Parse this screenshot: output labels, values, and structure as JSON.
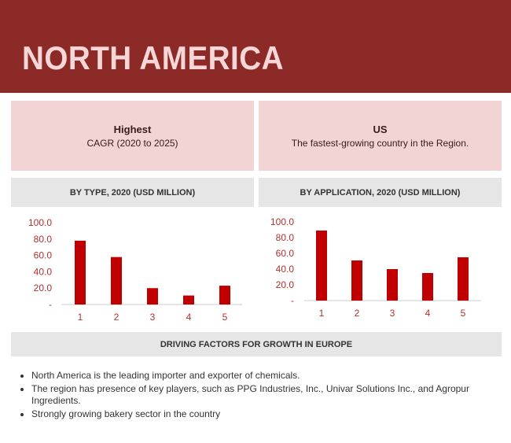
{
  "header": {
    "title": "NORTH AMERICA"
  },
  "cards": [
    {
      "bold": "Highest",
      "text": "CAGR (2020 to 2025)"
    },
    {
      "bold": "US",
      "text": "The fastest-growing country in the Region."
    }
  ],
  "colors": {
    "banner": "#8B2A26",
    "bar": "#C00000",
    "card": "#F2D4D4",
    "header": "#E6E6E6"
  },
  "chart_data": [
    {
      "type": "bar",
      "title": "BY TYPE, 2020 (USD MILLION)",
      "categories": [
        "1",
        "2",
        "3",
        "4",
        "5"
      ],
      "values": [
        78,
        58,
        20,
        11,
        23
      ],
      "ylim": [
        0,
        100
      ],
      "yticks": [
        "-",
        "20.0",
        "40.0",
        "60.0",
        "80.0",
        "100.0"
      ],
      "grid": false
    },
    {
      "type": "bar",
      "title": "BY APPLICATION, 2020 (USD MILLION)",
      "categories": [
        "1",
        "2",
        "3",
        "4",
        "5"
      ],
      "values": [
        89,
        51,
        40,
        35,
        55
      ],
      "ylim": [
        0,
        100
      ],
      "yticks": [
        "-",
        "20.0",
        "40.0",
        "60.0",
        "80.0",
        "100.0"
      ],
      "grid": false
    }
  ],
  "factors": {
    "title": "DRIVING FACTORS FOR GROWTH IN EUROPE",
    "bullets": [
      "North America is the leading importer and exporter of chemicals.",
      "The region has presence of key players, such as PPG Industries, Inc., Univar Solutions Inc., and Agropur Ingredients.",
      "Strongly growing bakery sector in the country"
    ]
  }
}
